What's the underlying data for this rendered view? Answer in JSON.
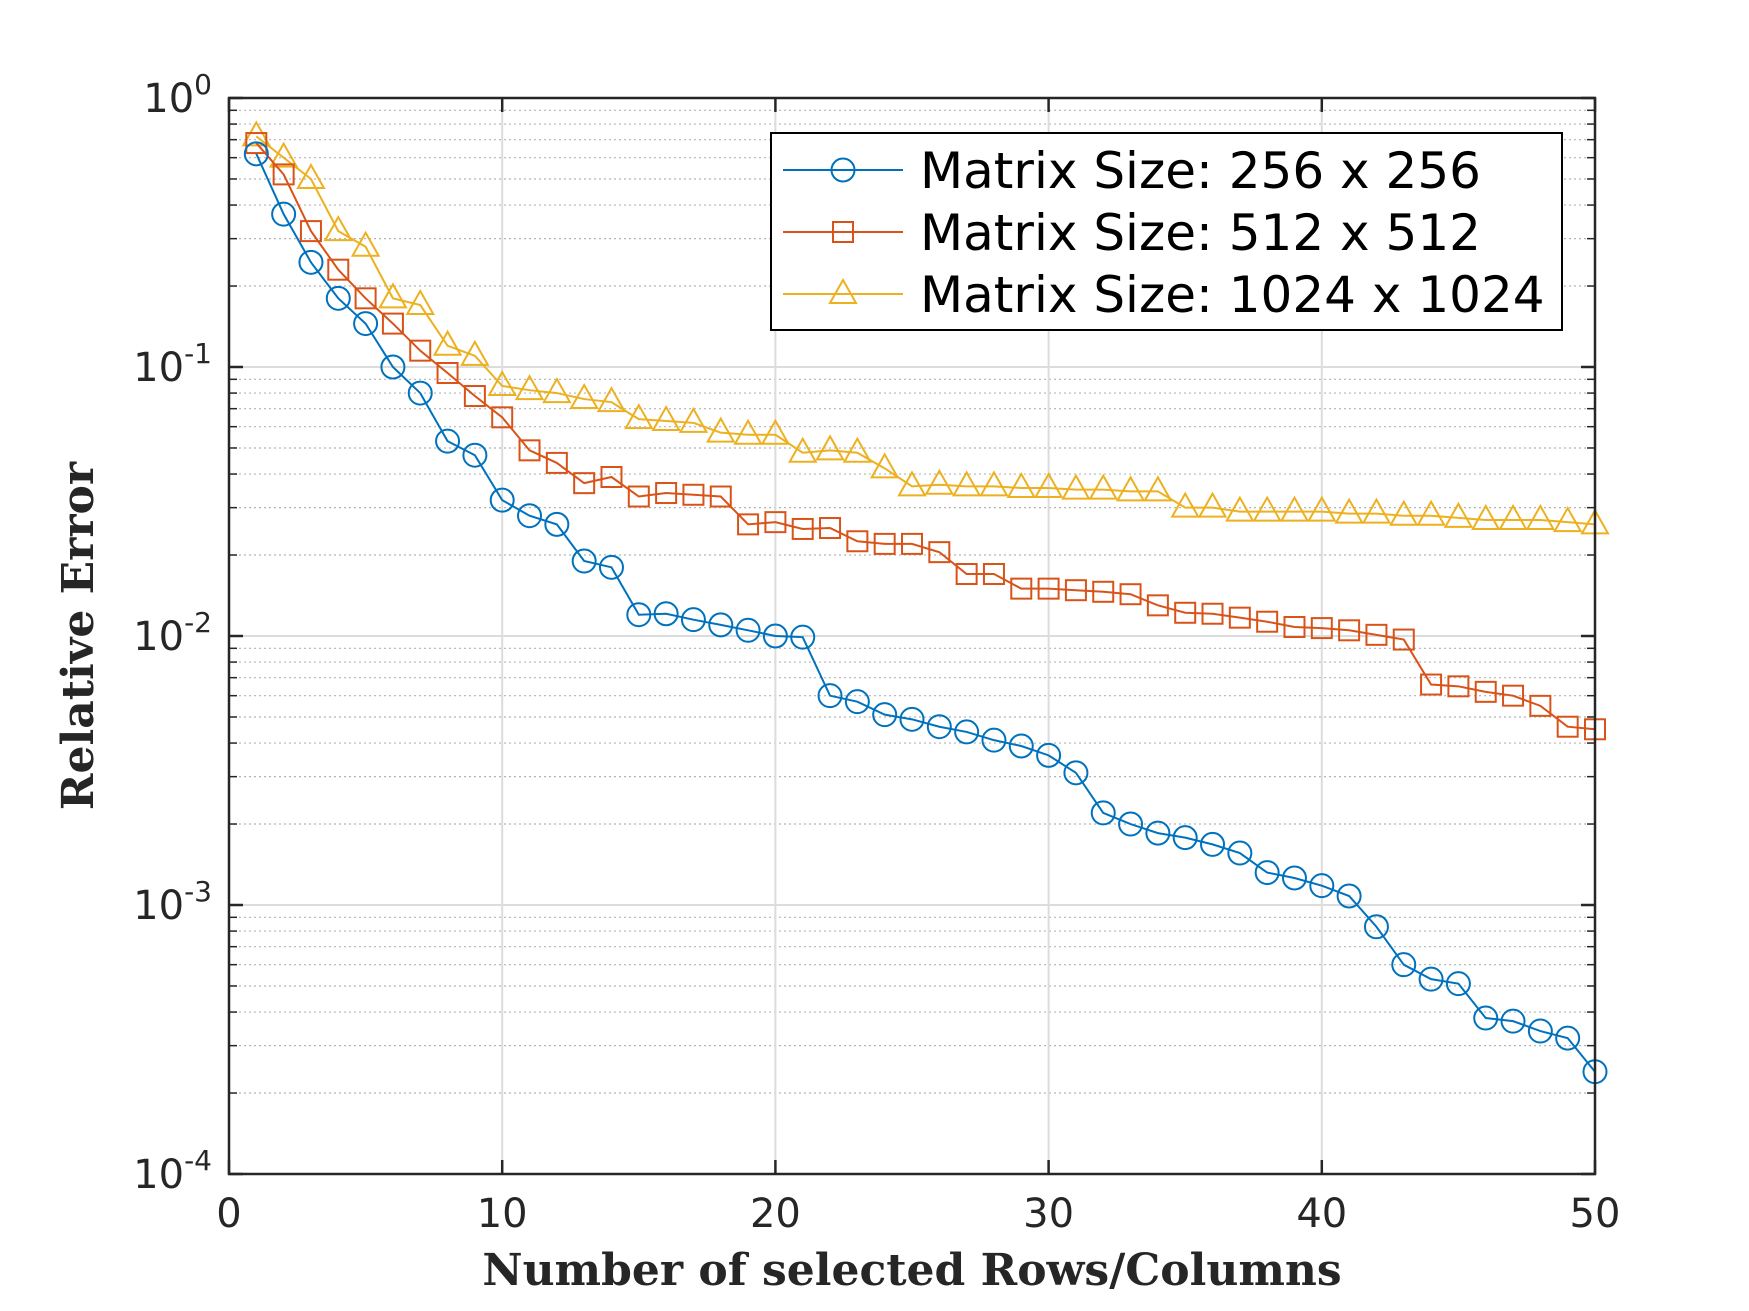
{
  "chart_data": {
    "type": "line",
    "title": "",
    "xlabel": "Number of selected Rows/Columns",
    "ylabel": "Relative Error",
    "xscale": "linear",
    "yscale": "log",
    "xlim": [
      0,
      50
    ],
    "ylim": [
      0.0001,
      1
    ],
    "xticks": [
      0,
      10,
      20,
      30,
      40,
      50
    ],
    "xtick_labels": [
      "0",
      "10",
      "20",
      "30",
      "40",
      "50"
    ],
    "yticks": [
      0.0001,
      0.001,
      0.01,
      0.1,
      1
    ],
    "ytick_labels": [
      {
        "base": "10",
        "exp": "-4"
      },
      {
        "base": "10",
        "exp": "-3"
      },
      {
        "base": "10",
        "exp": "-2"
      },
      {
        "base": "10",
        "exp": "-1"
      },
      {
        "base": "10",
        "exp": "0"
      }
    ],
    "grid": true,
    "legend_position": "top-right",
    "x": [
      1,
      2,
      3,
      4,
      5,
      6,
      7,
      8,
      9,
      10,
      11,
      12,
      13,
      14,
      15,
      16,
      17,
      18,
      19,
      20,
      21,
      22,
      23,
      24,
      25,
      26,
      27,
      28,
      29,
      30,
      31,
      32,
      33,
      34,
      35,
      36,
      37,
      38,
      39,
      40,
      41,
      42,
      43,
      44,
      45,
      46,
      47,
      48,
      49,
      50
    ],
    "series": [
      {
        "name": "Matrix Size: 256 x 256",
        "color": "#0072BD",
        "marker": "circle",
        "values": [
          0.62,
          0.37,
          0.245,
          0.18,
          0.145,
          0.1,
          0.08,
          0.053,
          0.047,
          0.032,
          0.028,
          0.026,
          0.019,
          0.018,
          0.012,
          0.0121,
          0.0115,
          0.011,
          0.0105,
          0.01,
          0.0099,
          0.006,
          0.0057,
          0.0051,
          0.0049,
          0.0046,
          0.0044,
          0.0041,
          0.0039,
          0.0036,
          0.0031,
          0.0022,
          0.002,
          0.00185,
          0.00178,
          0.00168,
          0.00156,
          0.00132,
          0.00126,
          0.00118,
          0.00108,
          0.00083,
          0.0006,
          0.00053,
          0.00051,
          0.00038,
          0.00037,
          0.00034,
          0.00032,
          0.00024
        ]
      },
      {
        "name": "Matrix Size: 512 x 512",
        "color": "#D95319",
        "marker": "square",
        "values": [
          0.68,
          0.52,
          0.32,
          0.23,
          0.18,
          0.145,
          0.115,
          0.095,
          0.078,
          0.065,
          0.049,
          0.044,
          0.037,
          0.039,
          0.033,
          0.034,
          0.0335,
          0.033,
          0.026,
          0.0265,
          0.025,
          0.0252,
          0.0225,
          0.022,
          0.022,
          0.0205,
          0.017,
          0.017,
          0.015,
          0.015,
          0.0148,
          0.0146,
          0.0143,
          0.013,
          0.0122,
          0.0121,
          0.0117,
          0.0113,
          0.0108,
          0.0107,
          0.0105,
          0.0101,
          0.0097,
          0.0066,
          0.0065,
          0.0062,
          0.006,
          0.0055,
          0.0046,
          0.0045
        ]
      },
      {
        "name": "Matrix Size: 1024 x 1024",
        "color": "#EDB120",
        "marker": "triangle",
        "values": [
          0.72,
          0.6,
          0.5,
          0.32,
          0.28,
          0.18,
          0.17,
          0.12,
          0.11,
          0.085,
          0.082,
          0.08,
          0.076,
          0.074,
          0.064,
          0.063,
          0.062,
          0.057,
          0.056,
          0.056,
          0.048,
          0.049,
          0.048,
          0.042,
          0.036,
          0.0365,
          0.036,
          0.036,
          0.0355,
          0.0355,
          0.035,
          0.035,
          0.0345,
          0.0345,
          0.03,
          0.03,
          0.029,
          0.029,
          0.029,
          0.029,
          0.0285,
          0.0285,
          0.028,
          0.028,
          0.0275,
          0.027,
          0.027,
          0.027,
          0.0265,
          0.026
        ]
      }
    ]
  }
}
